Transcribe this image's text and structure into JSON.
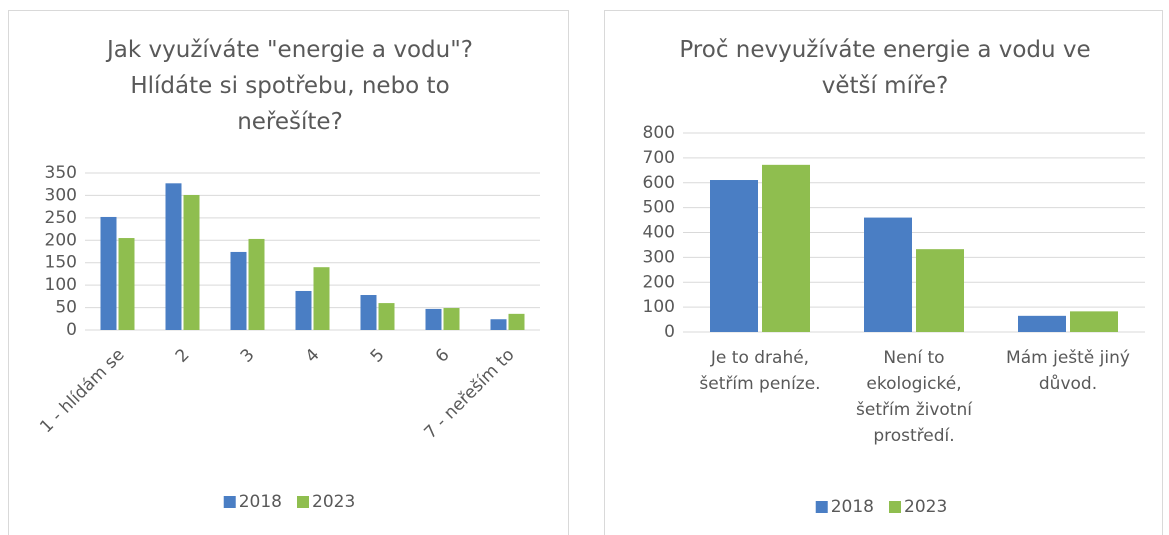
{
  "chart_data": [
    {
      "type": "bar",
      "title": "Jak využíváte \"energie a vodu\"? Hlídáte si spotřebu, nebo to neřešíte?",
      "categories": [
        "1 - hlídám se",
        "2",
        "3",
        "4",
        "5",
        "6",
        "7 - neřeším to"
      ],
      "series": [
        {
          "name": "2018",
          "color": "#4a7ec4",
          "values": [
            252,
            327,
            174,
            87,
            78,
            47,
            24
          ]
        },
        {
          "name": "2023",
          "color": "#8fbe4f",
          "values": [
            205,
            301,
            203,
            140,
            60,
            49,
            36
          ]
        }
      ],
      "ylim": [
        0,
        350
      ],
      "yticks": [
        0,
        50,
        100,
        150,
        200,
        250,
        300,
        350
      ],
      "grid": true,
      "legend": "bottom"
    },
    {
      "type": "bar",
      "title": "Proč nevyužíváte energie a vodu ve větší míře?",
      "categories": [
        "Je to drahé, šetřím peníze.",
        "Není to ekologické, šetřím životní prostředí.",
        "Mám ještě jiný důvod."
      ],
      "series": [
        {
          "name": "2018",
          "color": "#4a7ec4",
          "values": [
            611,
            460,
            65
          ]
        },
        {
          "name": "2023",
          "color": "#8fbe4f",
          "values": [
            672,
            333,
            83
          ]
        }
      ],
      "ylim": [
        0,
        800
      ],
      "yticks": [
        0,
        100,
        200,
        300,
        400,
        500,
        600,
        700,
        800
      ],
      "grid": true,
      "legend": "bottom"
    }
  ]
}
